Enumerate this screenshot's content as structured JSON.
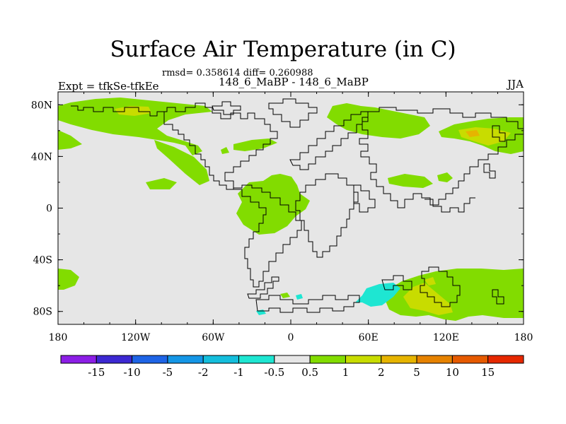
{
  "title": "Surface Air Temperature (in C)",
  "stats": "rmsd= 0.358614 diff= 0.260988",
  "subtitle": "148_6_MaBP - 148_6_MaBP",
  "left_label": "Expt = tfkSe-tfkEe",
  "right_label": "JJA",
  "map": {
    "lon_range": [
      -180,
      180
    ],
    "lat_range": [
      -90,
      90
    ],
    "x_ticks": [
      {
        "lon": -180,
        "label": "180"
      },
      {
        "lon": -120,
        "label": "120W"
      },
      {
        "lon": -60,
        "label": "60W"
      },
      {
        "lon": 0,
        "label": "0"
      },
      {
        "lon": 60,
        "label": "60E"
      },
      {
        "lon": 120,
        "label": "120E"
      },
      {
        "lon": 180,
        "label": "180"
      }
    ],
    "y_ticks": [
      {
        "lat": 80,
        "label": "80N"
      },
      {
        "lat": 40,
        "label": "40N"
      },
      {
        "lat": 0,
        "label": "0"
      },
      {
        "lat": -40,
        "label": "40S"
      },
      {
        "lat": -80,
        "label": "80S"
      }
    ],
    "background_color": "#e6e6e6",
    "coastline_color": "#000000"
  },
  "colorbar": {
    "colors": [
      "#8c1ee6",
      "#3c28d2",
      "#1e64e6",
      "#1496e6",
      "#14bedc",
      "#1ee6d2",
      "#e6e6e6",
      "#82dc00",
      "#c8dc00",
      "#e6b400",
      "#e68200",
      "#e65a00",
      "#e62800"
    ],
    "labels": [
      "-15",
      "-10",
      "-5",
      "-2",
      "-1",
      "-0.5",
      "0.5",
      "1",
      "2",
      "5",
      "10",
      "15"
    ]
  }
}
